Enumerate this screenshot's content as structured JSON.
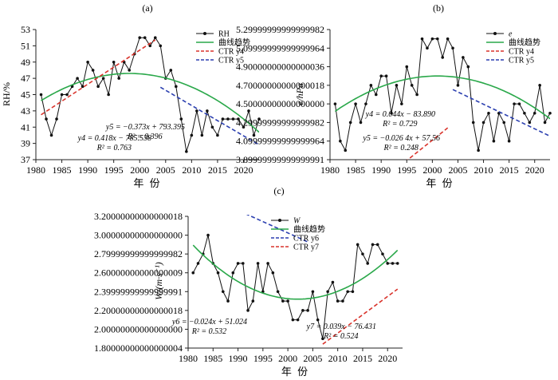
{
  "chart_data": [
    {
      "panel": "(a)",
      "type": "line",
      "ylabel": "RH/%",
      "xlabel": "年 份",
      "xlim": [
        1980,
        2023
      ],
      "ylim": [
        37,
        53
      ],
      "xticks": [
        1980,
        1985,
        1990,
        1995,
        2000,
        2005,
        2010,
        2015,
        2020
      ],
      "yticks": [
        37,
        39,
        41,
        43,
        45,
        47,
        49,
        51,
        53
      ],
      "x": [
        1981,
        1982,
        1983,
        1984,
        1985,
        1986,
        1987,
        1988,
        1989,
        1990,
        1991,
        1992,
        1993,
        1994,
        1995,
        1996,
        1997,
        1998,
        1999,
        2000,
        2001,
        2002,
        2003,
        2004,
        2005,
        2006,
        2007,
        2008,
        2009,
        2010,
        2011,
        2012,
        2013,
        2014,
        2015,
        2016,
        2017,
        2018,
        2019,
        2020,
        2021,
        2022,
        2023
      ],
      "series": [
        {
          "name": "RH",
          "values": [
            45,
            42,
            40,
            42,
            45,
            45,
            46,
            47,
            46,
            49,
            48,
            46,
            47,
            45,
            49,
            47,
            49,
            48,
            50,
            52,
            52,
            51,
            52,
            51,
            47,
            48,
            46,
            42,
            38,
            40,
            43,
            40,
            43,
            41,
            40,
            42,
            42,
            42,
            42,
            41,
            43,
            40,
            42
          ]
        },
        {
          "name": "曲线趋势",
          "coef": [
            -0.01156,
            46.1,
            -45908
          ]
        },
        {
          "name": "CTR y4",
          "slope": 0.418,
          "intercept": -785.538,
          "range": [
            1981,
            2003
          ]
        },
        {
          "name": "CTR y5",
          "slope": -0.373,
          "intercept": 793.395,
          "range": [
            2004,
            2023
          ]
        }
      ],
      "annotations": [
        {
          "lines": [
            "y4 = 0.418x − 785.538",
            "R² = 0.763"
          ]
        },
        {
          "lines": [
            "y5 = −0.373x + 793.395",
            "R² = 0.396"
          ]
        }
      ]
    },
    {
      "panel": "(b)",
      "type": "line",
      "ylabel": "e/hPa",
      "xlabel": "年 份",
      "xlim": [
        1980,
        2023
      ],
      "ylim": [
        3.9,
        5.3
      ],
      "xticks": [
        1980,
        1985,
        1990,
        1995,
        2000,
        2005,
        2010,
        2015,
        2020
      ],
      "yticks": [
        3.9,
        4.1,
        4.3,
        4.5,
        4.7,
        4.9,
        5.1,
        5.3
      ],
      "x": [
        1981,
        1982,
        1983,
        1984,
        1985,
        1986,
        1987,
        1988,
        1989,
        1990,
        1991,
        1992,
        1993,
        1994,
        1995,
        1996,
        1997,
        1998,
        1999,
        2000,
        2001,
        2002,
        2003,
        2004,
        2005,
        2006,
        2007,
        2008,
        2009,
        2010,
        2011,
        2012,
        2013,
        2014,
        2015,
        2016,
        2017,
        2018,
        2019,
        2020,
        2021,
        2022,
        2023
      ],
      "series": [
        {
          "name": "e",
          "values": [
            4.5,
            4.1,
            4.0,
            4.3,
            4.5,
            4.3,
            4.5,
            4.7,
            4.6,
            4.8,
            4.8,
            4.4,
            4.7,
            4.5,
            4.9,
            4.7,
            4.6,
            5.2,
            5.1,
            5.2,
            5.2,
            5.0,
            5.2,
            5.1,
            4.7,
            5.0,
            4.9,
            4.3,
            4.0,
            4.3,
            4.4,
            4.1,
            4.4,
            4.3,
            4.1,
            4.5,
            4.5,
            4.4,
            4.3,
            4.4,
            4.7,
            4.3,
            4.4
          ]
        },
        {
          "name": "曲线趋势",
          "coef": [
            -0.00095,
            3.8,
            -3795.2
          ]
        },
        {
          "name": "CTR y4",
          "slope": 0.044,
          "intercept": -83.89,
          "range": [
            1981,
            2003
          ]
        },
        {
          "name": "CTR y5",
          "slope": -0.0264,
          "intercept": 57.56,
          "range": [
            2004,
            2023
          ]
        }
      ],
      "annotations": [
        {
          "lines": [
            "y4 = 0.044x − 83.890",
            "R² = 0.729"
          ]
        },
        {
          "lines": [
            "y5 = −0.026 4x + 57.56",
            "R² = 0.248"
          ]
        }
      ]
    },
    {
      "panel": "(c)",
      "type": "line",
      "ylabel": "W/(m·s⁻¹)",
      "xlabel": "年 份",
      "xlim": [
        1980,
        2023
      ],
      "ylim": [
        1.8,
        3.2
      ],
      "xticks": [
        1980,
        1985,
        1990,
        1995,
        2000,
        2005,
        2010,
        2015,
        2020
      ],
      "yticks": [
        1.8,
        2.0,
        2.2,
        2.4,
        2.6,
        2.8,
        3.0,
        3.2
      ],
      "x": [
        1981,
        1982,
        1983,
        1984,
        1985,
        1986,
        1987,
        1988,
        1989,
        1990,
        1991,
        1992,
        1993,
        1994,
        1995,
        1996,
        1997,
        1998,
        1999,
        2000,
        2001,
        2002,
        2003,
        2004,
        2005,
        2006,
        2007,
        2008,
        2009,
        2010,
        2011,
        2012,
        2013,
        2014,
        2015,
        2016,
        2017,
        2018,
        2019,
        2020,
        2021,
        2022
      ],
      "series": [
        {
          "name": "W",
          "values": [
            2.6,
            2.7,
            2.8,
            3.0,
            2.7,
            2.6,
            2.4,
            2.3,
            2.6,
            2.7,
            2.7,
            2.2,
            2.3,
            2.7,
            2.4,
            2.7,
            2.6,
            2.4,
            2.3,
            2.3,
            2.1,
            2.1,
            2.2,
            2.2,
            2.4,
            2.1,
            1.9,
            2.4,
            2.5,
            2.3,
            2.3,
            2.4,
            2.4,
            2.9,
            2.8,
            2.7,
            2.9,
            2.9,
            2.8,
            2.7,
            2.7,
            2.7
          ]
        },
        {
          "name": "曲线趋势",
          "coef": [
            0.0013,
            2.32,
            2002
          ]
        },
        {
          "name": "CTR y6",
          "slope": -0.024,
          "intercept": 51.024,
          "range": [
            1981,
            2004
          ]
        },
        {
          "name": "CTR y7",
          "slope": 0.039,
          "intercept": -76.431,
          "range": [
            2007,
            2022
          ]
        }
      ],
      "annotations": [
        {
          "lines": [
            "y6 = −0.024x + 51.024",
            "R² = 0.532"
          ]
        },
        {
          "lines": [
            "y7 = 0.039x − 76.431",
            "R² = 0.524"
          ]
        }
      ]
    }
  ],
  "colors": {
    "observed": "#111111",
    "trend_curve": "#2aa84a",
    "ctr_red": "#d9332b",
    "ctr_blue": "#2b3fb0"
  }
}
